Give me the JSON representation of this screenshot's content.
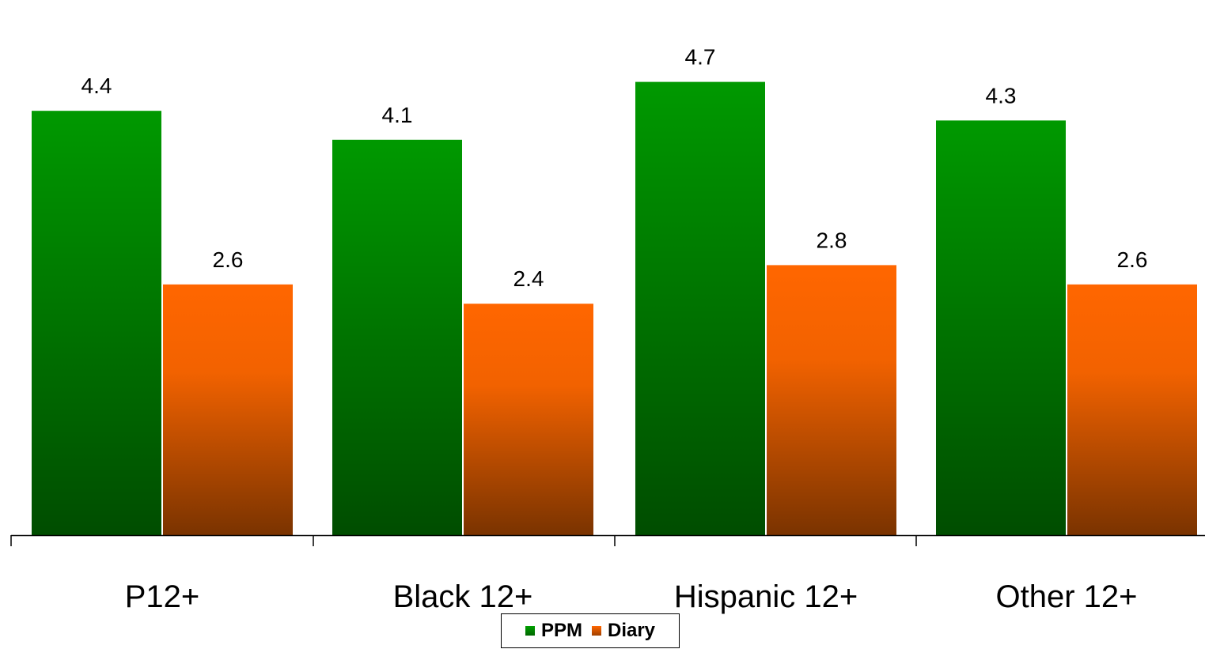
{
  "chart_data": {
    "type": "bar",
    "categories": [
      "P12+",
      "Black 12+",
      "Hispanic 12+",
      "Other 12+"
    ],
    "series": [
      {
        "name": "PPM",
        "values": [
          4.4,
          4.1,
          4.7,
          4.3
        ],
        "color": "#009900"
      },
      {
        "name": "Diary",
        "values": [
          2.6,
          2.4,
          2.8,
          2.6
        ],
        "color": "#ff6600"
      }
    ],
    "value_labels": [
      [
        "4.4",
        "4.1",
        "4.7",
        "4.3"
      ],
      [
        "2.6",
        "2.4",
        "2.8",
        "2.6"
      ]
    ],
    "ylim": [
      0,
      5.2
    ],
    "grid": false,
    "legend": "bottom-center"
  }
}
